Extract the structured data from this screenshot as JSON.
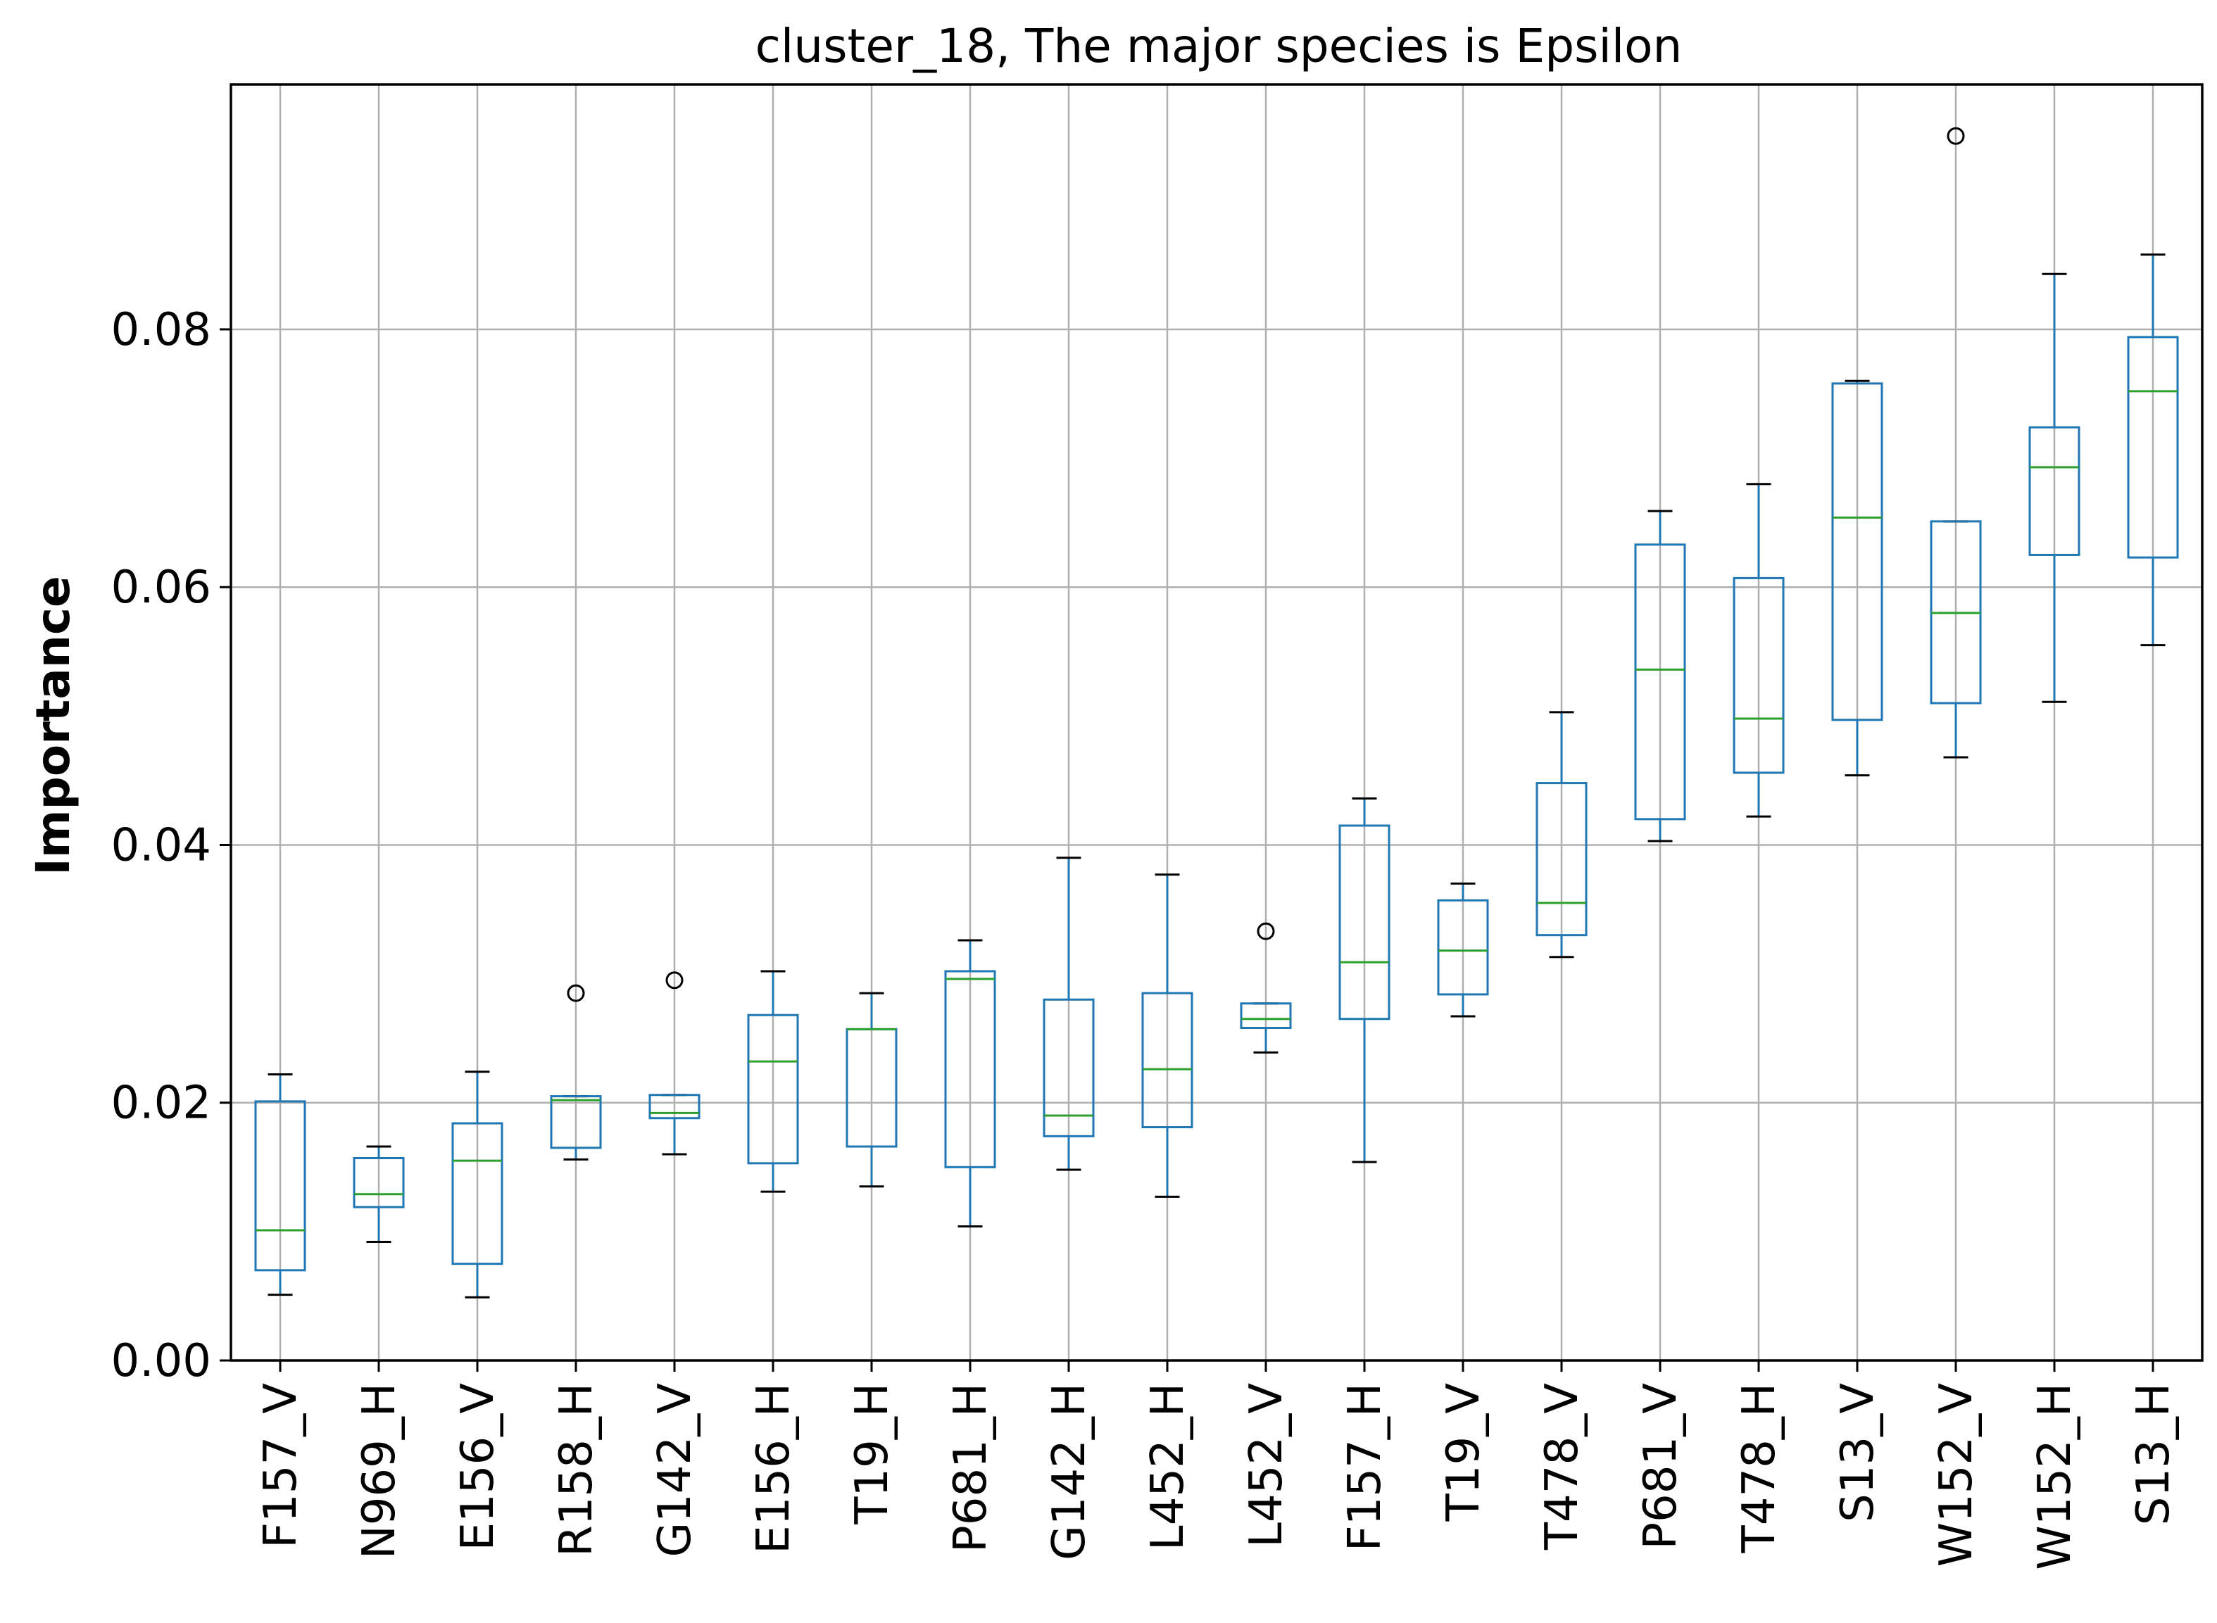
{
  "chart_data": {
    "type": "box",
    "title": "cluster_18, The major species is Epsilon",
    "xlabel": "",
    "ylabel": "Importance",
    "ylim": [
      0.0,
      0.099
    ],
    "yticks": [
      0.0,
      0.02,
      0.04,
      0.06,
      0.08
    ],
    "ytick_labels": [
      "0.00",
      "0.02",
      "0.04",
      "0.06",
      "0.08"
    ],
    "grid": true,
    "colors": {
      "box": "#1f77b4",
      "median": "#2ca02c",
      "whisker": "#1f77b4",
      "cap": "#000000",
      "flier": "#000000",
      "grid": "#b0b0b0"
    },
    "categories": [
      "F157_V",
      "N969_H",
      "E156_V",
      "R158_H",
      "G142_V",
      "E156_H",
      "T19_H",
      "P681_H",
      "G142_H",
      "L452_H",
      "L452_V",
      "F157_H",
      "T19_V",
      "T478_V",
      "P681_V",
      "T478_H",
      "S13_V",
      "W152_V",
      "W152_H",
      "S13_H"
    ],
    "boxes": [
      {
        "label": "F157_V",
        "whislo": 0.0051,
        "q1": 0.007,
        "med": 0.0101,
        "q3": 0.0201,
        "whishi": 0.0222,
        "fliers": []
      },
      {
        "label": "N969_H",
        "whislo": 0.0092,
        "q1": 0.0119,
        "med": 0.0129,
        "q3": 0.0157,
        "whishi": 0.0166,
        "fliers": []
      },
      {
        "label": "E156_V",
        "whislo": 0.0049,
        "q1": 0.0075,
        "med": 0.0155,
        "q3": 0.0184,
        "whishi": 0.0224,
        "fliers": []
      },
      {
        "label": "R158_H",
        "whislo": 0.0156,
        "q1": 0.0165,
        "med": 0.0202,
        "q3": 0.0205,
        "whishi": 0.0205,
        "fliers": [
          0.0285
        ]
      },
      {
        "label": "G142_V",
        "whislo": 0.016,
        "q1": 0.0188,
        "med": 0.0192,
        "q3": 0.0206,
        "whishi": 0.0206,
        "fliers": [
          0.0295
        ]
      },
      {
        "label": "E156_H",
        "whislo": 0.0131,
        "q1": 0.0153,
        "med": 0.0232,
        "q3": 0.0268,
        "whishi": 0.0302,
        "fliers": []
      },
      {
        "label": "T19_H",
        "whislo": 0.0135,
        "q1": 0.0166,
        "med": 0.0257,
        "q3": 0.0257,
        "whishi": 0.0285,
        "fliers": []
      },
      {
        "label": "P681_H",
        "whislo": 0.0104,
        "q1": 0.015,
        "med": 0.0296,
        "q3": 0.0302,
        "whishi": 0.0326,
        "fliers": []
      },
      {
        "label": "G142_H",
        "whislo": 0.0148,
        "q1": 0.0174,
        "med": 0.019,
        "q3": 0.028,
        "whishi": 0.039,
        "fliers": []
      },
      {
        "label": "L452_H",
        "whislo": 0.0127,
        "q1": 0.0181,
        "med": 0.0226,
        "q3": 0.0285,
        "whishi": 0.0377,
        "fliers": []
      },
      {
        "label": "L452_V",
        "whislo": 0.0239,
        "q1": 0.0258,
        "med": 0.0265,
        "q3": 0.0277,
        "whishi": 0.0277,
        "fliers": [
          0.0333
        ]
      },
      {
        "label": "F157_H",
        "whislo": 0.0154,
        "q1": 0.0265,
        "med": 0.0309,
        "q3": 0.0415,
        "whishi": 0.0436,
        "fliers": []
      },
      {
        "label": "T19_V",
        "whislo": 0.0267,
        "q1": 0.0284,
        "med": 0.0318,
        "q3": 0.0357,
        "whishi": 0.037,
        "fliers": []
      },
      {
        "label": "T478_V",
        "whislo": 0.0313,
        "q1": 0.033,
        "med": 0.0355,
        "q3": 0.0448,
        "whishi": 0.0503,
        "fliers": []
      },
      {
        "label": "P681_V",
        "whislo": 0.0403,
        "q1": 0.042,
        "med": 0.0536,
        "q3": 0.0633,
        "whishi": 0.0659,
        "fliers": []
      },
      {
        "label": "T478_H",
        "whislo": 0.0422,
        "q1": 0.0456,
        "med": 0.0498,
        "q3": 0.0607,
        "whishi": 0.068,
        "fliers": []
      },
      {
        "label": "S13_V",
        "whislo": 0.0454,
        "q1": 0.0497,
        "med": 0.0654,
        "q3": 0.0758,
        "whishi": 0.076,
        "fliers": []
      },
      {
        "label": "W152_V",
        "whislo": 0.0468,
        "q1": 0.051,
        "med": 0.058,
        "q3": 0.0651,
        "whishi": 0.0651,
        "fliers": [
          0.095
        ]
      },
      {
        "label": "W152_H",
        "whislo": 0.0511,
        "q1": 0.0625,
        "med": 0.0693,
        "q3": 0.0724,
        "whishi": 0.0843,
        "fliers": []
      },
      {
        "label": "S13_H",
        "whislo": 0.0555,
        "q1": 0.0623,
        "med": 0.0752,
        "q3": 0.0794,
        "whishi": 0.0858,
        "fliers": []
      }
    ]
  }
}
